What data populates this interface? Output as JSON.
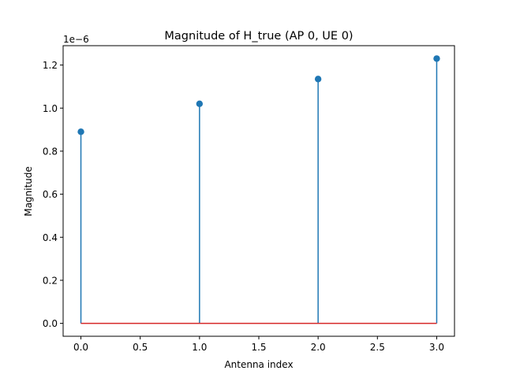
{
  "chart_data": {
    "type": "stem",
    "title": "Magnitude of H_true (AP 0, UE 0)",
    "xlabel": "Antenna index",
    "ylabel": "Magnitude",
    "y_scale_label": "1e−6",
    "x": [
      0,
      1,
      2,
      3
    ],
    "values": [
      0.89,
      1.02,
      1.135,
      1.23
    ],
    "xlim": [
      -0.15,
      3.15
    ],
    "ylim": [
      -0.06,
      1.29
    ],
    "xticks": [
      0.0,
      0.5,
      1.0,
      1.5,
      2.0,
      2.5,
      3.0
    ],
    "xtick_labels": [
      "0.0",
      "0.5",
      "1.0",
      "1.5",
      "2.0",
      "2.5",
      "3.0"
    ],
    "yticks": [
      0.0,
      0.2,
      0.4,
      0.6,
      0.8,
      1.0,
      1.2
    ],
    "ytick_labels": [
      "0.0",
      "0.2",
      "0.4",
      "0.6",
      "0.8",
      "1.0",
      "1.2"
    ],
    "grid": false,
    "colors": {
      "stem": "#1f77b4",
      "baseline": "#d62728"
    }
  }
}
